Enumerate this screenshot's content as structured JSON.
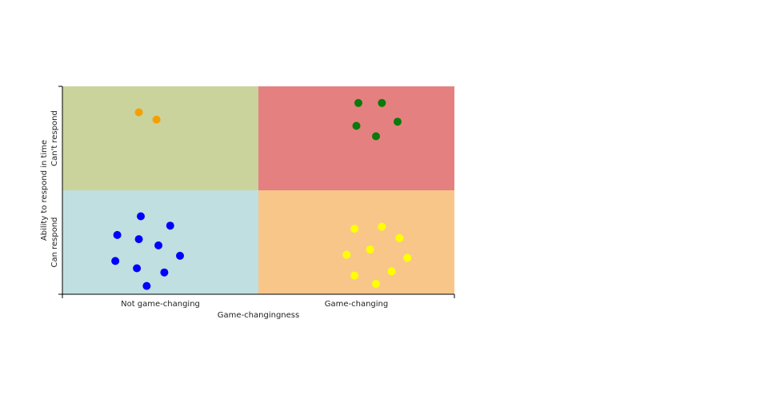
{
  "chart_data": {
    "type": "scatter",
    "x_label": "Game-changingness",
    "y_label": "Ability to respond in time",
    "xlim": [
      0,
      2
    ],
    "ylim": [
      0,
      2
    ],
    "xticks": [
      {
        "value": 0.5,
        "label": "Not game-changing"
      },
      {
        "value": 1.5,
        "label": "Game-changing"
      }
    ],
    "yticks": [
      {
        "value": 0.5,
        "label": "Can respond"
      },
      {
        "value": 1.5,
        "label": "Can't respond"
      }
    ],
    "quadrant_colors": {
      "top_left": "#cbd39d",
      "top_right": "#e58080",
      "bottom_left": "#c0dfe0",
      "bottom_right": "#f9c68a"
    },
    "series": [
      {
        "color": "#f5a000",
        "x": [
          0.39,
          0.48
        ],
        "values": [
          1.75,
          1.68
        ]
      },
      {
        "color": "#0a7a0a",
        "x": [
          1.51,
          1.63,
          1.5,
          1.71,
          1.6
        ],
        "values": [
          1.84,
          1.84,
          1.62,
          1.66,
          1.52
        ]
      },
      {
        "color": "#0000ff",
        "x": [
          0.4,
          0.55,
          0.28,
          0.39,
          0.49,
          0.6,
          0.27,
          0.38,
          0.52,
          0.43
        ],
        "values": [
          0.75,
          0.66,
          0.57,
          0.53,
          0.47,
          0.37,
          0.32,
          0.25,
          0.21,
          0.08
        ]
      },
      {
        "color": "#ffff00",
        "x": [
          1.49,
          1.63,
          1.72,
          1.57,
          1.45,
          1.76,
          1.68,
          1.49,
          1.6
        ],
        "values": [
          0.63,
          0.65,
          0.54,
          0.43,
          0.38,
          0.35,
          0.22,
          0.18,
          0.1
        ]
      }
    ]
  }
}
